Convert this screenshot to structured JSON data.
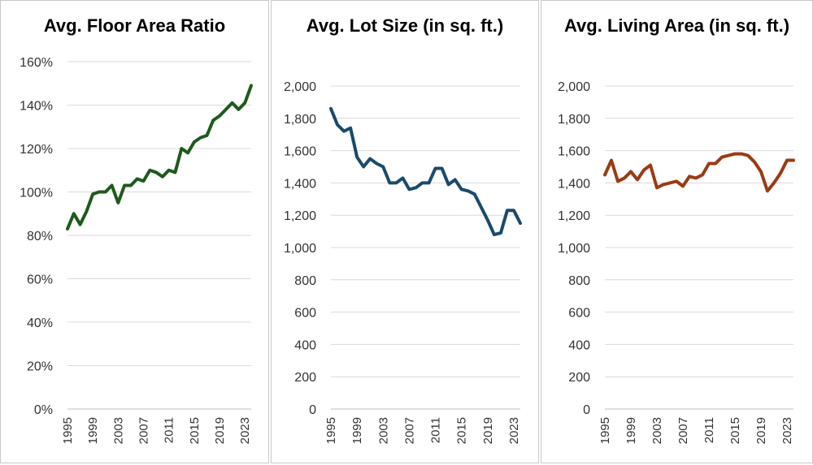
{
  "chart_data": [
    {
      "type": "line",
      "title": "Avg. Floor Area Ratio",
      "color": "#1e5a1e",
      "ylim": [
        0,
        160
      ],
      "y_tick_labels": [
        "0%",
        "20%",
        "40%",
        "60%",
        "80%",
        "100%",
        "120%",
        "140%",
        "160%"
      ],
      "x_tick_labels": [
        "1995",
        "1999",
        "2003",
        "2007",
        "2011",
        "2015",
        "2019",
        "2023"
      ],
      "x": [
        1995,
        1996,
        1997,
        1998,
        1999,
        2000,
        2001,
        2002,
        2003,
        2004,
        2005,
        2006,
        2007,
        2008,
        2009,
        2010,
        2011,
        2012,
        2013,
        2014,
        2015,
        2016,
        2017,
        2018,
        2019,
        2020,
        2021,
        2022,
        2023,
        2024
      ],
      "values": [
        83,
        90,
        85,
        91,
        99,
        100,
        100,
        103,
        95,
        103,
        103,
        106,
        105,
        110,
        109,
        107,
        110,
        109,
        120,
        118,
        123,
        125,
        126,
        133,
        135,
        138,
        141,
        138,
        141,
        149
      ]
    },
    {
      "type": "line",
      "title": "Avg. Lot Size (in sq. ft.)",
      "color": "#1b4a6b",
      "ylim": [
        0,
        2000
      ],
      "y_tick_labels": [
        "0",
        "200",
        "400",
        "600",
        "800",
        "1,000",
        "1,200",
        "1,400",
        "1,600",
        "1,800",
        "2,000"
      ],
      "x_tick_labels": [
        "1995",
        "1999",
        "2003",
        "2007",
        "2011",
        "2015",
        "2019",
        "2023"
      ],
      "x": [
        1995,
        1996,
        1997,
        1998,
        1999,
        2000,
        2001,
        2002,
        2003,
        2004,
        2005,
        2006,
        2007,
        2008,
        2009,
        2010,
        2011,
        2012,
        2013,
        2014,
        2015,
        2016,
        2017,
        2018,
        2019,
        2020,
        2021,
        2022,
        2023,
        2024
      ],
      "values": [
        1860,
        1760,
        1720,
        1740,
        1560,
        1500,
        1550,
        1520,
        1500,
        1400,
        1400,
        1430,
        1360,
        1370,
        1400,
        1400,
        1490,
        1490,
        1390,
        1420,
        1360,
        1350,
        1330,
        1250,
        1170,
        1080,
        1090,
        1230,
        1230,
        1150
      ]
    },
    {
      "type": "line",
      "title": "Avg. Living Area (in sq. ft.)",
      "color": "#9a3b14",
      "ylim": [
        0,
        2000
      ],
      "y_tick_labels": [
        "0",
        "200",
        "400",
        "600",
        "800",
        "1,000",
        "1,200",
        "1,400",
        "1,600",
        "1,800",
        "2,000"
      ],
      "x_tick_labels": [
        "1995",
        "1999",
        "2003",
        "2007",
        "2011",
        "2015",
        "2019",
        "2023"
      ],
      "x": [
        1995,
        1996,
        1997,
        1998,
        1999,
        2000,
        2001,
        2002,
        2003,
        2004,
        2005,
        2006,
        2007,
        2008,
        2009,
        2010,
        2011,
        2012,
        2013,
        2014,
        2015,
        2016,
        2017,
        2018,
        2019,
        2020,
        2021,
        2022,
        2023,
        2024
      ],
      "values": [
        1450,
        1540,
        1410,
        1430,
        1470,
        1420,
        1480,
        1510,
        1370,
        1390,
        1400,
        1410,
        1380,
        1440,
        1430,
        1450,
        1520,
        1520,
        1560,
        1570,
        1580,
        1580,
        1570,
        1530,
        1470,
        1350,
        1400,
        1460,
        1540,
        1540
      ]
    }
  ]
}
